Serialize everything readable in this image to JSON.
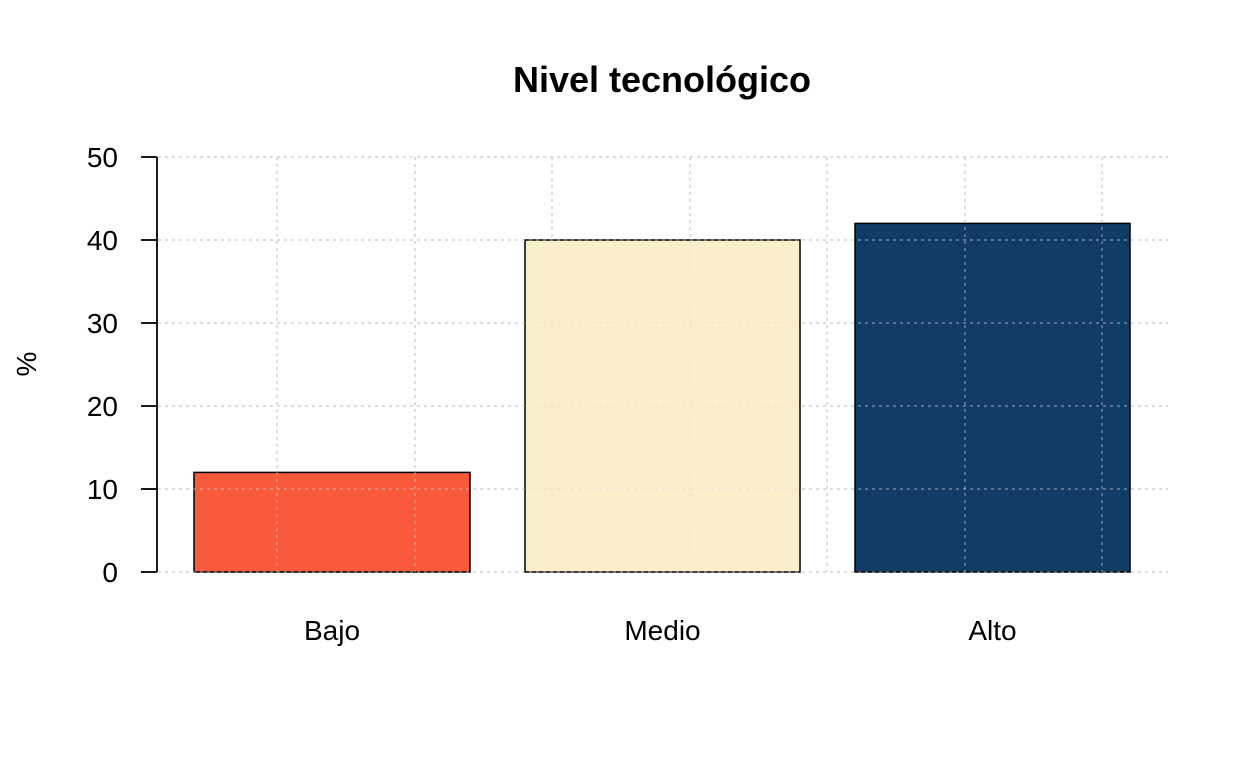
{
  "chart_data": {
    "type": "bar",
    "title": "Nivel tecnológico",
    "xlabel": "",
    "ylabel": "%",
    "categories": [
      "Bajo",
      "Medio",
      "Alto"
    ],
    "values": [
      12,
      40,
      42
    ],
    "colors": [
      "#fa5a3c",
      "#f9efca",
      "#103c66"
    ],
    "ylim": [
      0,
      50
    ],
    "yticks": [
      0,
      10,
      20,
      30,
      40,
      50
    ],
    "grid": true,
    "grid_color": "#cccccc"
  }
}
